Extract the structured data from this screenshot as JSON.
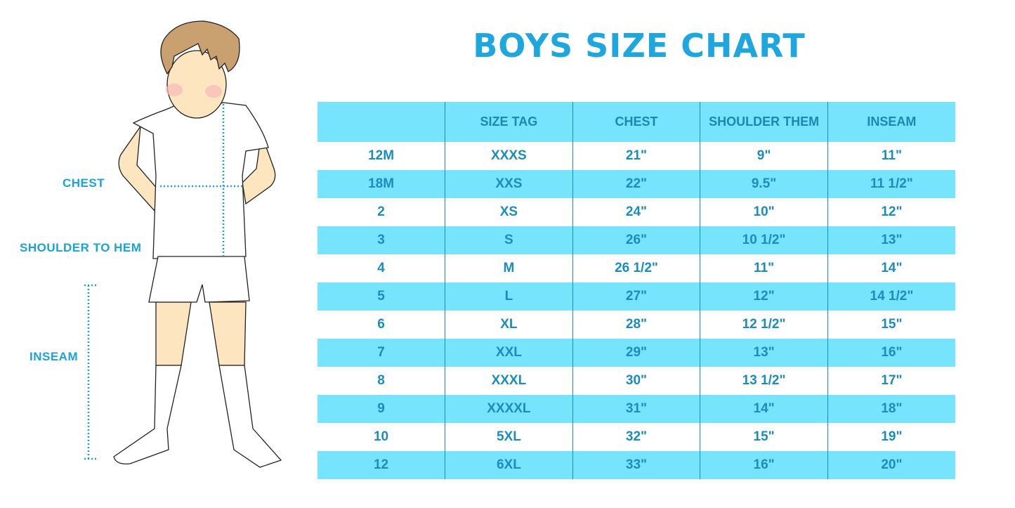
{
  "title": "BOYS SIZE CHART",
  "figure_labels": {
    "chest": "CHEST",
    "shoulder_to_hem": "SHOULDER TO HEM",
    "inseam": "INSEAM"
  },
  "colors": {
    "accent": "#1ea6df",
    "row_highlight": "#76e4fc",
    "text": "#1a8cc0"
  },
  "table": {
    "headers": [
      "",
      "SIZE TAG",
      "CHEST",
      "SHOULDER THEM",
      "INSEAM"
    ],
    "rows": [
      [
        "12M",
        "XXXS",
        "21\"",
        "9\"",
        "11\""
      ],
      [
        "18M",
        "XXS",
        "22\"",
        "9.5\"",
        "11 1/2\""
      ],
      [
        "2",
        "XS",
        "24\"",
        "10\"",
        "12\""
      ],
      [
        "3",
        "S",
        "26\"",
        "10 1/2\"",
        "13\""
      ],
      [
        "4",
        "M",
        "26 1/2\"",
        "11\"",
        "14\""
      ],
      [
        "5",
        "L",
        "27\"",
        "12\"",
        "14 1/2\""
      ],
      [
        "6",
        "XL",
        "28\"",
        "12 1/2\"",
        "15\""
      ],
      [
        "7",
        "XXL",
        "29\"",
        "13\"",
        "16\""
      ],
      [
        "8",
        "XXXL",
        "30\"",
        "13 1/2\"",
        "17\""
      ],
      [
        "9",
        "XXXXL",
        "31\"",
        "14\"",
        "18\""
      ],
      [
        "10",
        "5XL",
        "32\"",
        "15\"",
        "19\""
      ],
      [
        "12",
        "6XL",
        "33\"",
        "16\"",
        "20\""
      ]
    ]
  }
}
